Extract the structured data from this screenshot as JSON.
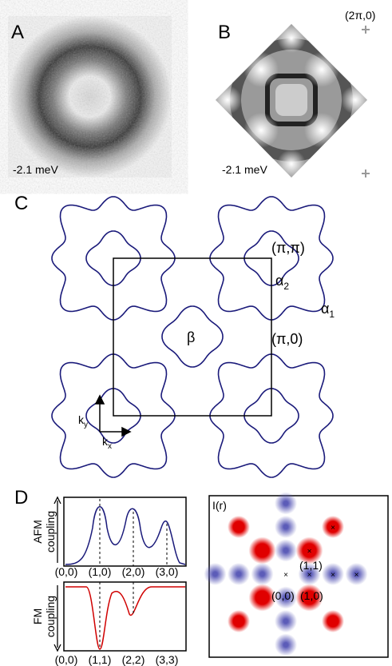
{
  "panel_a": {
    "letter": "A",
    "energy": "-2.1 meV"
  },
  "panel_b": {
    "letter": "B",
    "energy": "-2.1 meV",
    "corner": "(2π,0)"
  },
  "panel_c": {
    "letter": "C",
    "pipi": "(π,π)",
    "alpha2": {
      "text": "α",
      "subscript": "2"
    },
    "alpha1": {
      "text": "α",
      "subscript": "1"
    },
    "beta": "β",
    "pi0": "(π,0)",
    "ky": {
      "text": "k",
      "subscript": "y"
    },
    "kx": {
      "text": "k",
      "subscript": "x"
    }
  },
  "panel_d": {
    "letter": "D",
    "afm_label": "AFM coupling",
    "fm_label": "FM coupling",
    "afm_ticks": [
      "(0,0)",
      "(1,0)",
      "(2,0)",
      "(3,0)"
    ],
    "fm_ticks": [
      "(0,0)",
      "(1,1)",
      "(2,2)",
      "(3,3)"
    ],
    "map_title": "I(r)",
    "map_labels": [
      "(1,1)",
      "(0,0)",
      "(1,0)"
    ]
  }
}
